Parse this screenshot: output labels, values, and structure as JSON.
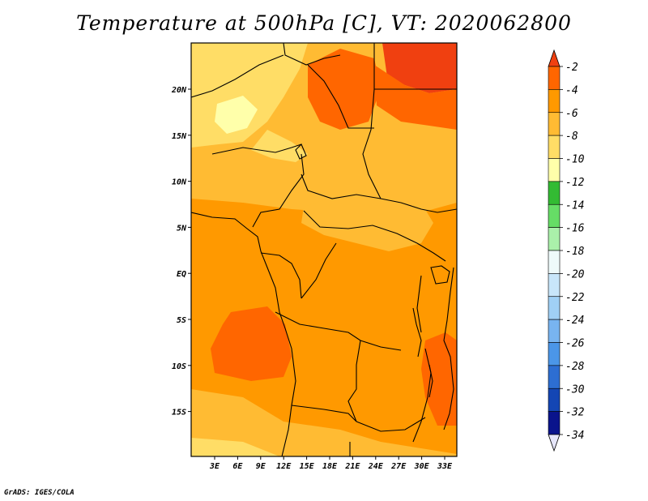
{
  "title": "Temperature at 500hPa [C], VT: 2020062800",
  "credit": "GrADS: IGES/COLA",
  "map": {
    "lon_labels": [
      "3E",
      "6E",
      "9E",
      "12E",
      "15E",
      "18E",
      "21E",
      "24E",
      "27E",
      "30E",
      "33E"
    ],
    "lat_labels": [
      "20N",
      "15N",
      "10N",
      "5N",
      "EQ",
      "5S",
      "10S",
      "15S"
    ]
  },
  "colorbar": {
    "labels": [
      "-2",
      "-4",
      "-6",
      "-8",
      "-10",
      "-12",
      "-14",
      "-16",
      "-18",
      "-20",
      "-22",
      "-24",
      "-26",
      "-28",
      "-30",
      "-32",
      "-34"
    ],
    "colors": [
      "#f04010",
      "#ff6600",
      "#ff9900",
      "#ffbb33",
      "#ffdd66",
      "#ffffaa",
      "#33bb33",
      "#66dd66",
      "#aaf0aa",
      "#eefafa",
      "#c8e6fa",
      "#a0d0f5",
      "#78b4f0",
      "#4b96e8",
      "#2d6ed2",
      "#1446b4",
      "#0a148c"
    ],
    "top_color": "#f04010",
    "bottom_color": "#e6e6fa"
  },
  "palette": {
    "t_m2": "#f04010",
    "t_m4": "#ff6600",
    "t_m6": "#ff9900",
    "t_m8": "#ffbb33",
    "t_m10": "#ffdd66",
    "t_m12": "#ffffaa"
  }
}
